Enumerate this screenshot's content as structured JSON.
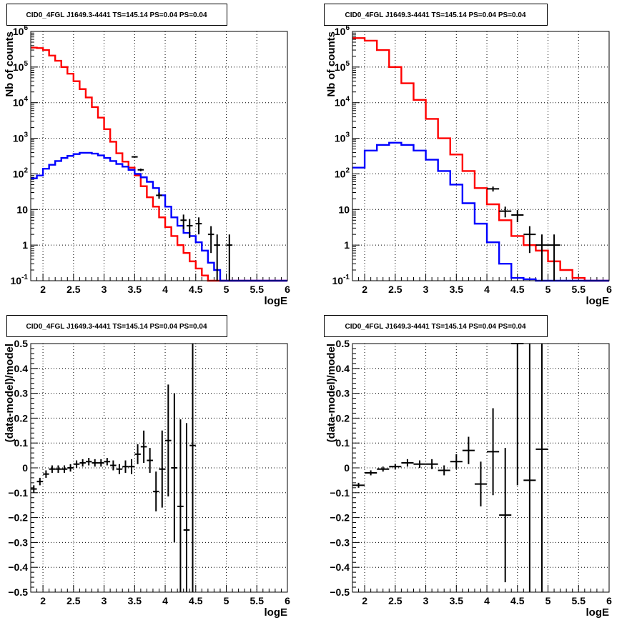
{
  "chart_data": [
    {
      "type": "line",
      "panel": "top-left",
      "title": "CID0_4FGL J1649.3-4441 TS=145.14 PS=0.04 PS=0.04",
      "xlabel": "logE",
      "ylabel": "Nb of counts",
      "xlim": [
        1.8,
        6.0
      ],
      "ylim": [
        0.1,
        1000000
      ],
      "yscale": "log",
      "grid": true,
      "xticks": [
        "2",
        "2.5",
        "3",
        "3.5",
        "4",
        "4.5",
        "5",
        "5.5",
        "6"
      ],
      "yticks": [
        {
          "base": "10",
          "exp": "-1",
          "value": 0.1
        },
        {
          "base": "1",
          "exp": "",
          "value": 1
        },
        {
          "base": "10",
          "exp": "",
          "value": 10
        },
        {
          "base": "10",
          "exp": "2",
          "value": 100
        },
        {
          "base": "10",
          "exp": "3",
          "value": 1000
        },
        {
          "base": "10",
          "exp": "4",
          "value": 10000
        },
        {
          "base": "10",
          "exp": "5",
          "value": 100000
        },
        {
          "base": "10",
          "exp": "6",
          "value": 1000000
        }
      ],
      "bin_edges": [
        1.8,
        1.9,
        2.0,
        2.1,
        2.2,
        2.3,
        2.4,
        2.5,
        2.6,
        2.7,
        2.8,
        2.9,
        3.0,
        3.1,
        3.2,
        3.3,
        3.4,
        3.5,
        3.6,
        3.7,
        3.8,
        3.9,
        4.0,
        4.1,
        4.2,
        4.3,
        4.4,
        4.5,
        4.6,
        4.7,
        4.8,
        4.9,
        5.0,
        5.1,
        5.2,
        5.3,
        5.4,
        5.5,
        5.6,
        5.7,
        5.8,
        5.9,
        6.0
      ],
      "series": [
        {
          "color": "#ff0000",
          "values": [
            350000,
            340000,
            300000,
            210000,
            150000,
            100000,
            65000,
            40000,
            24000,
            14000,
            7500,
            3800,
            1800,
            800,
            380,
            220,
            150,
            90,
            45,
            22,
            12,
            6,
            3.2,
            1.8,
            1.0,
            0.6,
            0.35,
            0.22,
            0.14,
            0.1,
            0.1,
            0.1,
            0.1,
            0.1,
            0.1,
            0.1,
            0.1,
            0.1,
            0.1,
            0.1,
            0.1,
            0.1
          ]
        },
        {
          "color": "#0000ff",
          "values": [
            75,
            90,
            140,
            180,
            230,
            280,
            320,
            360,
            390,
            390,
            370,
            330,
            280,
            230,
            190,
            160,
            130,
            100,
            80,
            60,
            40,
            25,
            12,
            6,
            3.5,
            2.2,
            1.8,
            1.2,
            0.7,
            0.32,
            0.2,
            0.1,
            0.1,
            0.1,
            0.1,
            0.1,
            0.1,
            0.1,
            0.1,
            0.1,
            0.1,
            0.1
          ]
        }
      ],
      "data_points": [
        {
          "x": 3.5,
          "y": 300,
          "err": 15,
          "xerr": 0.05
        },
        {
          "x": 3.6,
          "y": 130,
          "err": 11,
          "xerr": 0.05
        },
        {
          "x": 3.9,
          "y": 25,
          "err": 5,
          "xerr": 0.05
        },
        {
          "x": 4.3,
          "y": 5,
          "err": 2.2,
          "xerr": 0.05
        },
        {
          "x": 4.4,
          "y": 3.5,
          "err": 1.9,
          "xerr": 0.05
        },
        {
          "x": 4.55,
          "y": 4,
          "err": 2,
          "xerr": 0.05
        },
        {
          "x": 4.75,
          "y": 2,
          "err": 1.4,
          "xerr": 0.05
        },
        {
          "x": 4.85,
          "y": 1,
          "err": 0.99,
          "xerr": 0.05
        },
        {
          "x": 5.05,
          "y": 1,
          "err": 0.99,
          "xerr": 0.05
        }
      ]
    },
    {
      "type": "line",
      "panel": "top-right",
      "title": "CID0_4FGL J1649.3-4441 TS=145.14 PS=0.04 PS=0.04",
      "xlabel": "logE",
      "ylabel": "Nb of counts",
      "xlim": [
        1.8,
        6.0
      ],
      "ylim": [
        0.1,
        1000000
      ],
      "yscale": "log",
      "grid": true,
      "xticks": [
        "2",
        "2.5",
        "3",
        "3.5",
        "4",
        "4.5",
        "5",
        "5.5",
        "6"
      ],
      "yticks": [
        {
          "base": "10",
          "exp": "-1",
          "value": 0.1
        },
        {
          "base": "1",
          "exp": "",
          "value": 1
        },
        {
          "base": "10",
          "exp": "",
          "value": 10
        },
        {
          "base": "10",
          "exp": "2",
          "value": 100
        },
        {
          "base": "10",
          "exp": "3",
          "value": 1000
        },
        {
          "base": "10",
          "exp": "4",
          "value": 10000
        },
        {
          "base": "10",
          "exp": "5",
          "value": 100000
        },
        {
          "base": "10",
          "exp": "6",
          "value": 1000000
        }
      ],
      "bin_edges": [
        1.8,
        2.0,
        2.2,
        2.4,
        2.6,
        2.8,
        3.0,
        3.2,
        3.4,
        3.6,
        3.8,
        4.0,
        4.2,
        4.4,
        4.6,
        4.8,
        5.0,
        5.2,
        5.4,
        5.6,
        5.8,
        6.0
      ],
      "series": [
        {
          "color": "#ff0000",
          "values": [
            650000,
            550000,
            300000,
            100000,
            35000,
            12000,
            3500,
            1000,
            350,
            120,
            40,
            14,
            5,
            1.8,
            1.0,
            0.7,
            0.35,
            0.2,
            0.12,
            0.1,
            0.1
          ]
        },
        {
          "color": "#0000ff",
          "values": [
            150,
            450,
            650,
            750,
            650,
            450,
            250,
            120,
            50,
            15,
            4,
            1.2,
            0.3,
            0.12,
            0.11,
            0.1,
            0.1,
            0.1,
            0.1,
            0.1,
            0.1
          ]
        }
      ],
      "data_points": [
        {
          "x": 4.1,
          "y": 38,
          "err": 6,
          "xerr": 0.1
        },
        {
          "x": 4.3,
          "y": 9,
          "err": 3,
          "xerr": 0.1
        },
        {
          "x": 4.5,
          "y": 7,
          "err": 2.6,
          "xerr": 0.1
        },
        {
          "x": 4.7,
          "y": 2,
          "err": 1.4,
          "xerr": 0.1
        },
        {
          "x": 4.9,
          "y": 1,
          "err": 0.99,
          "xerr": 0.1
        },
        {
          "x": 5.1,
          "y": 1,
          "err": 0.99,
          "xerr": 0.1
        }
      ]
    },
    {
      "type": "scatter",
      "panel": "bottom-left",
      "title": "CID0_4FGL J1649.3-4441 TS=145.14 PS=0.04 PS=0.04",
      "xlabel": "logE",
      "ylabel": "(data-model)/model",
      "xlim": [
        1.8,
        6.0
      ],
      "ylim": [
        -0.5,
        0.5
      ],
      "grid": true,
      "xticks": [
        "2",
        "2.5",
        "3",
        "3.5",
        "4",
        "4.5",
        "5",
        "5.5",
        "6"
      ],
      "yticks": [
        "−0.5",
        "−0.4",
        "−0.3",
        "−0.2",
        "−0.1",
        "0",
        "0.1",
        "0.2",
        "0.3",
        "0.4",
        "0.5"
      ],
      "ytick_values": [
        -0.5,
        -0.4,
        -0.3,
        -0.2,
        -0.1,
        0,
        0.1,
        0.2,
        0.3,
        0.4,
        0.5
      ],
      "xerr": 0.05,
      "points": [
        {
          "x": 1.85,
          "y": -0.085,
          "err": 0.015
        },
        {
          "x": 1.95,
          "y": -0.055,
          "err": 0.015
        },
        {
          "x": 2.05,
          "y": -0.025,
          "err": 0.015
        },
        {
          "x": 2.15,
          "y": -0.005,
          "err": 0.015
        },
        {
          "x": 2.25,
          "y": -0.005,
          "err": 0.015
        },
        {
          "x": 2.35,
          "y": -0.005,
          "err": 0.015
        },
        {
          "x": 2.45,
          "y": 0.0,
          "err": 0.015
        },
        {
          "x": 2.55,
          "y": 0.015,
          "err": 0.015
        },
        {
          "x": 2.65,
          "y": 0.02,
          "err": 0.015
        },
        {
          "x": 2.75,
          "y": 0.025,
          "err": 0.015
        },
        {
          "x": 2.85,
          "y": 0.02,
          "err": 0.015
        },
        {
          "x": 2.95,
          "y": 0.02,
          "err": 0.015
        },
        {
          "x": 3.05,
          "y": 0.025,
          "err": 0.015
        },
        {
          "x": 3.15,
          "y": 0.01,
          "err": 0.02
        },
        {
          "x": 3.25,
          "y": -0.005,
          "err": 0.02
        },
        {
          "x": 3.35,
          "y": 0.005,
          "err": 0.025
        },
        {
          "x": 3.45,
          "y": 0.005,
          "err": 0.03
        },
        {
          "x": 3.55,
          "y": 0.055,
          "err": 0.04
        },
        {
          "x": 3.65,
          "y": 0.085,
          "err": 0.065
        },
        {
          "x": 3.75,
          "y": 0.03,
          "err": 0.05
        },
        {
          "x": 3.85,
          "y": -0.095,
          "err": 0.08
        },
        {
          "x": 3.95,
          "y": -0.005,
          "err": 0.155
        },
        {
          "x": 4.05,
          "y": 0.11,
          "err": 0.225
        },
        {
          "x": 4.15,
          "y": 0.0,
          "err": 0.3
        },
        {
          "x": 4.25,
          "y": -0.155,
          "err": 0.35
        },
        {
          "x": 4.35,
          "y": -0.25,
          "err": 0.43
        },
        {
          "x": 4.45,
          "y": 0.09,
          "err": 0.6
        }
      ]
    },
    {
      "type": "scatter",
      "panel": "bottom-right",
      "title": "CID0_4FGL J1649.3-4441 TS=145.14 PS=0.04 PS=0.04",
      "xlabel": "logE",
      "ylabel": "(data-model)/model",
      "xlim": [
        1.8,
        6.0
      ],
      "ylim": [
        -0.5,
        0.5
      ],
      "grid": true,
      "xticks": [
        "2",
        "2.5",
        "3",
        "3.5",
        "4",
        "4.5",
        "5",
        "5.5",
        "6"
      ],
      "yticks": [
        "−0.5",
        "−0.4",
        "−0.3",
        "−0.2",
        "−0.1",
        "0",
        "0.1",
        "0.2",
        "0.3",
        "0.4",
        "0.5"
      ],
      "ytick_values": [
        -0.5,
        -0.4,
        -0.3,
        -0.2,
        -0.1,
        0,
        0.1,
        0.2,
        0.3,
        0.4,
        0.5
      ],
      "xerr": 0.1,
      "points": [
        {
          "x": 1.9,
          "y": -0.07,
          "err": 0.01
        },
        {
          "x": 2.1,
          "y": -0.02,
          "err": 0.01
        },
        {
          "x": 2.3,
          "y": -0.005,
          "err": 0.01
        },
        {
          "x": 2.5,
          "y": 0.005,
          "err": 0.01
        },
        {
          "x": 2.7,
          "y": 0.02,
          "err": 0.015
        },
        {
          "x": 2.9,
          "y": 0.015,
          "err": 0.015
        },
        {
          "x": 3.1,
          "y": 0.015,
          "err": 0.02
        },
        {
          "x": 3.3,
          "y": -0.01,
          "err": 0.02
        },
        {
          "x": 3.5,
          "y": 0.025,
          "err": 0.03
        },
        {
          "x": 3.7,
          "y": 0.07,
          "err": 0.055
        },
        {
          "x": 3.9,
          "y": -0.065,
          "err": 0.09
        },
        {
          "x": 4.1,
          "y": 0.065,
          "err": 0.175
        },
        {
          "x": 4.3,
          "y": -0.19,
          "err": 0.27
        },
        {
          "x": 4.5,
          "y": 0.5,
          "err": 0.57
        },
        {
          "x": 4.7,
          "y": -0.05,
          "err": 0.6
        },
        {
          "x": 4.9,
          "y": 0.075,
          "err": 0.6
        }
      ]
    }
  ]
}
